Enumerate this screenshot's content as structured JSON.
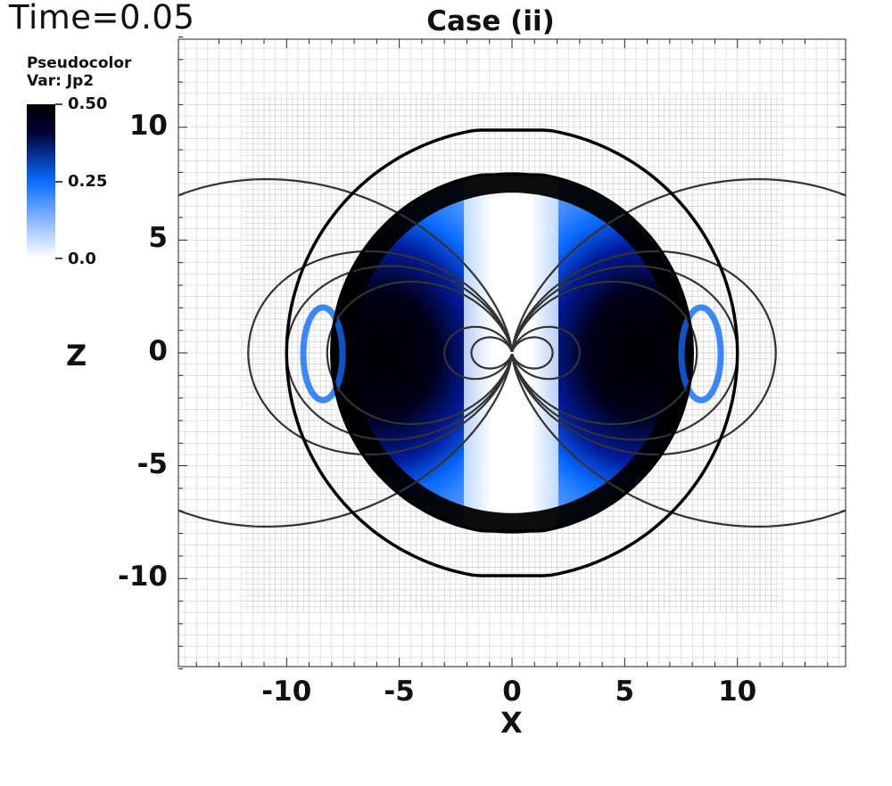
{
  "header": {
    "time_label": "Time=0.05",
    "title": "Case (ii)"
  },
  "legend": {
    "title_line1": "Pseudocolor",
    "title_line2": "Var: Jp2",
    "max_label": "0.50",
    "mid_label": "0.25",
    "min_label": "0.0",
    "colors": [
      "#ffffff",
      "#0a6cff",
      "#000033",
      "#000000"
    ]
  },
  "chart_data": {
    "type": "heatmap",
    "title": "Case (ii)",
    "xlabel": "X",
    "ylabel": "Z",
    "xlim": [
      -14.8,
      14.8
    ],
    "ylim": [
      -13.9,
      13.9
    ],
    "x_ticks": [
      -10,
      -5,
      0,
      5,
      10
    ],
    "x_tick_labels": [
      "-10",
      "-5",
      "0",
      "5",
      "10"
    ],
    "y_ticks": [
      -10,
      -5,
      0,
      5,
      10
    ],
    "y_tick_labels": [
      "-10",
      "-5",
      "0",
      "5",
      "10"
    ],
    "variable": "Jp2",
    "color_range": [
      0.0,
      0.5
    ],
    "grid": true,
    "outer_boundary_radius": 10,
    "inner_boundary_radius": 8,
    "field_lines": [
      {
        "kind": "polar",
        "equatorial_radius": 1.8
      },
      {
        "kind": "polar",
        "equatorial_radius": 3.0
      },
      {
        "kind": "loop",
        "equatorial_radius": 8.2
      },
      {
        "kind": "loop",
        "equatorial_radius": 10.0
      },
      {
        "kind": "loop",
        "equatorial_radius": 11.7
      },
      {
        "kind": "loop",
        "equatorial_radius": 20.0
      }
    ]
  }
}
